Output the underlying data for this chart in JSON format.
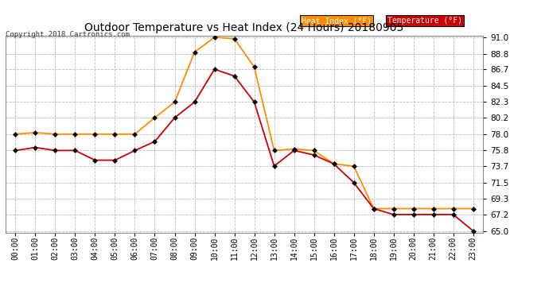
{
  "title": "Outdoor Temperature vs Heat Index (24 Hours) 20180905",
  "copyright": "Copyright 2018 Cartronics.com",
  "hours": [
    "00:00",
    "01:00",
    "02:00",
    "03:00",
    "04:00",
    "05:00",
    "06:00",
    "07:00",
    "08:00",
    "09:00",
    "10:00",
    "11:00",
    "12:00",
    "13:00",
    "14:00",
    "15:00",
    "16:00",
    "17:00",
    "18:00",
    "19:00",
    "20:00",
    "21:00",
    "22:00",
    "23:00"
  ],
  "heat_index": [
    78.0,
    78.2,
    78.0,
    78.0,
    78.0,
    78.0,
    78.0,
    80.2,
    82.3,
    89.0,
    91.0,
    90.8,
    87.0,
    75.8,
    76.0,
    75.8,
    74.0,
    73.7,
    68.0,
    68.0,
    68.0,
    68.0,
    68.0,
    68.0
  ],
  "temperature": [
    75.8,
    76.2,
    75.8,
    75.8,
    74.5,
    74.5,
    75.8,
    77.0,
    80.2,
    82.3,
    86.7,
    85.8,
    82.3,
    73.7,
    75.8,
    75.2,
    74.0,
    71.5,
    68.0,
    67.2,
    67.2,
    67.2,
    67.2,
    65.0
  ],
  "heat_index_color": "#FF8C00",
  "temperature_color": "#CC0000",
  "marker_color": "black",
  "bg_color": "#FFFFFF",
  "grid_color": "#BBBBBB",
  "ylim_min": 65.0,
  "ylim_max": 91.0,
  "yticks": [
    65.0,
    67.2,
    69.3,
    71.5,
    73.7,
    75.8,
    78.0,
    80.2,
    82.3,
    84.5,
    86.7,
    88.8,
    91.0
  ],
  "legend_heat_index_label": "Heat Index (°F)",
  "legend_temperature_label": "Temperature (°F)",
  "legend_heat_index_bg": "#FF8C00",
  "legend_temperature_bg": "#CC0000",
  "legend_text_color": "#FFFFFF"
}
